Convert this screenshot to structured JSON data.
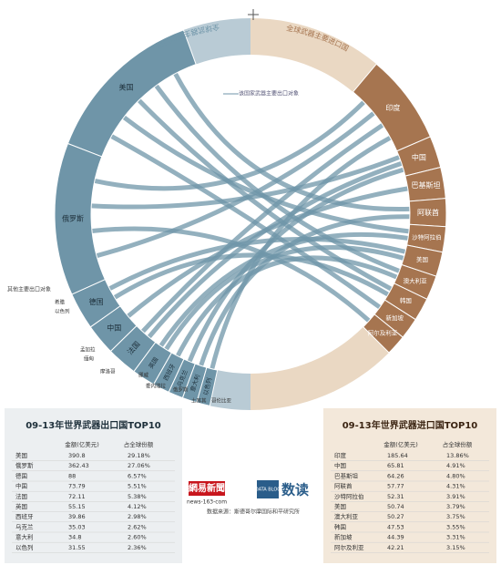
{
  "diagram": {
    "export_label": "全球武器主要出口国",
    "import_label": "全球武器主要进口国",
    "source_note": "该国家武器主要出口对象",
    "other_note": "其他主要出口对象",
    "minor": [
      "希腊",
      "以色列",
      "孟加拉",
      "缅甸",
      "摩洛哥",
      "挪威",
      "委内瑞拉",
      "俄罗斯",
      "土耳其",
      "哥伦比亚"
    ]
  },
  "export_table": {
    "title": "09-13年世界武器出口国TOP10",
    "columns": [
      "金额(亿美元)",
      "占全球份额"
    ],
    "rows": [
      [
        "美国",
        390.8,
        "29.18%"
      ],
      [
        "俄罗斯",
        362.43,
        "27.06%"
      ],
      [
        "德国",
        88,
        "6.57%"
      ],
      [
        "中国",
        73.79,
        "5.51%"
      ],
      [
        "法国",
        72.11,
        "5.38%"
      ],
      [
        "英国",
        55.15,
        "4.12%"
      ],
      [
        "西班牙",
        39.86,
        "2.98%"
      ],
      [
        "乌克兰",
        35.03,
        "2.62%"
      ],
      [
        "意大利",
        34.8,
        "2.60%"
      ],
      [
        "以色列",
        31.55,
        "2.36%"
      ]
    ]
  },
  "import_table": {
    "title": "09-13年世界武器进口国TOP10",
    "columns": [
      "金额(亿美元)",
      "占全球份额"
    ],
    "rows": [
      [
        "印度",
        185.64,
        "13.86%"
      ],
      [
        "中国",
        65.81,
        "4.91%"
      ],
      [
        "巴基斯坦",
        64.26,
        "4.80%"
      ],
      [
        "阿联酋",
        57.77,
        "4.31%"
      ],
      [
        "沙特阿拉伯",
        52.31,
        "3.91%"
      ],
      [
        "美国",
        50.74,
        "3.79%"
      ],
      [
        "澳大利亚",
        50.27,
        "3.75%"
      ],
      [
        "韩国",
        47.53,
        "3.55%"
      ],
      [
        "新加坡",
        44.39,
        "3.31%"
      ],
      [
        "阿尔及利亚",
        42.21,
        "3.15%"
      ]
    ]
  },
  "brand": {
    "netease": "網易新聞",
    "url": "news-163-com",
    "datablog": "DATA BLOG",
    "shudu": "数读"
  },
  "source": "数据来源：斯德哥尔摩国际和平研究所"
}
